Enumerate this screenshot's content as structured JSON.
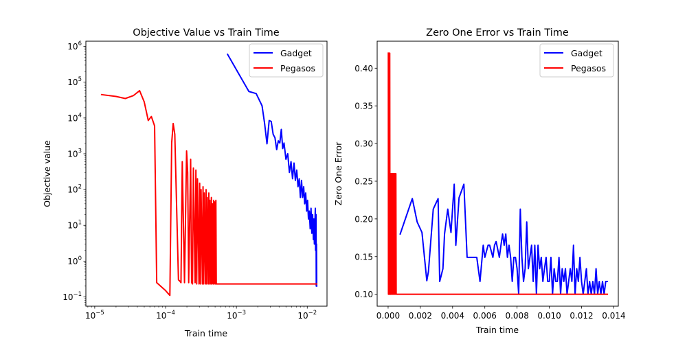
{
  "chart_data": [
    {
      "type": "line",
      "title": "Objective Value vs Train Time",
      "xlabel": "Train time",
      "ylabel": "Objective value",
      "xscale": "log",
      "yscale": "log",
      "xlim": [
        7.5e-06,
        0.019
      ],
      "ylim": [
        0.055,
        1400000
      ],
      "xticks": [
        {
          "base": "10",
          "exp": "−5"
        },
        {
          "base": "10",
          "exp": "−4"
        },
        {
          "base": "10",
          "exp": "−3"
        },
        {
          "base": "10",
          "exp": "−2"
        }
      ],
      "xtick_values": [
        1e-05,
        0.0001,
        0.001,
        0.01
      ],
      "yticks": [
        {
          "base": "10",
          "exp": "−1"
        },
        {
          "base": "10",
          "exp": "0"
        },
        {
          "base": "10",
          "exp": "1"
        },
        {
          "base": "10",
          "exp": "2"
        },
        {
          "base": "10",
          "exp": "3"
        },
        {
          "base": "10",
          "exp": "4"
        },
        {
          "base": "10",
          "exp": "5"
        },
        {
          "base": "10",
          "exp": "6"
        }
      ],
      "ytick_values": [
        0.1,
        1,
        10,
        100,
        1000,
        10000,
        100000,
        1000000
      ],
      "legend": {
        "position": "top-right",
        "entries": [
          "Gadget",
          "Pegasos"
        ]
      },
      "grid": false,
      "series": [
        {
          "name": "Gadget",
          "color": "#0000ff",
          "x": [
            0.00075,
            0.0015,
            0.0019,
            0.0023,
            0.0025,
            0.0027,
            0.0029,
            0.0031,
            0.0033,
            0.0035,
            0.0037,
            0.0039,
            0.0041,
            0.0043,
            0.0045,
            0.0047,
            0.005,
            0.0053,
            0.0056,
            0.0059,
            0.0062,
            0.0065,
            0.0068,
            0.0071,
            0.0074,
            0.0077,
            0.008,
            0.0083,
            0.0086,
            0.0089,
            0.0092,
            0.0095,
            0.0098,
            0.0101,
            0.0104,
            0.0107,
            0.011,
            0.0113,
            0.0116,
            0.0119,
            0.0122,
            0.0124,
            0.0126,
            0.0128,
            0.013,
            0.0131,
            0.0132,
            0.0133,
            0.0134,
            0.0135,
            0.0136
          ],
          "y": [
            600000,
            55000,
            48000,
            22000,
            7000,
            1900,
            8500,
            8000,
            3500,
            2800,
            1300,
            2300,
            2000,
            4800,
            1400,
            2000,
            700,
            1000,
            300,
            600,
            200,
            550,
            180,
            350,
            120,
            200,
            60,
            180,
            60,
            120,
            40,
            80,
            25,
            50,
            15,
            25,
            8,
            30,
            6,
            20,
            4,
            15,
            3,
            10,
            30,
            2,
            5,
            20,
            0.2,
            3,
            0.2
          ]
        },
        {
          "name": "Pegasos",
          "color": "#ff0000",
          "x": [
            1.25e-05,
            2e-05,
            2.7e-05,
            3.5e-05,
            4.3e-05,
            5e-05,
            5.7e-05,
            6.3e-05,
            7e-05,
            7.5e-05,
            8.5e-05,
            0.0001,
            0.000115,
            0.000122,
            0.000128,
            0.000135,
            0.000152,
            0.000158,
            0.000165,
            0.000172,
            0.000185,
            0.000198,
            0.000205,
            0.000212,
            0.000226,
            0.000233,
            0.00024,
            0.000247,
            0.000261,
            0.000268,
            0.000275,
            0.000282,
            0.000296,
            0.000303,
            0.00031,
            0.000317,
            0.000331,
            0.000338,
            0.000345,
            0.000352,
            0.000366,
            0.000373,
            0.00038,
            0.000387,
            0.000401,
            0.000408,
            0.000415,
            0.000422,
            0.000436,
            0.000443,
            0.00045,
            0.000457,
            0.000471,
            0.000478,
            0.000485,
            0.000492,
            0.000506,
            0.000513,
            0.00052,
            0.0006,
            0.0008,
            0.001,
            0.002,
            0.004,
            0.008,
            0.0136
          ],
          "y": [
            45000,
            40000,
            35000,
            42000,
            58000,
            28000,
            8500,
            11000,
            6000,
            0.25,
            0.2,
            0.15,
            0.11,
            2000,
            7000,
            3500,
            0.3,
            0.28,
            0.25,
            600,
            0.25,
            1200,
            300,
            0.25,
            700,
            0.25,
            0.23,
            400,
            0.25,
            350,
            0.23,
            200,
            0.23,
            150,
            0.23,
            100,
            0.23,
            120,
            0.23,
            80,
            0.23,
            100,
            0.23,
            60,
            0.23,
            80,
            0.23,
            50,
            0.23,
            60,
            0.23,
            40,
            0.23,
            50,
            0.23,
            45,
            0.23,
            50,
            0.23,
            0.23,
            0.23,
            0.23,
            0.23,
            0.23,
            0.23,
            0.23
          ]
        }
      ]
    },
    {
      "type": "line",
      "title": "Zero One Error vs Train Time",
      "xlabel": "Train time",
      "ylabel": "Zero One Error",
      "xlim": [
        -0.00068,
        0.01428
      ],
      "ylim": [
        0.0842,
        0.4358
      ],
      "xticks": [
        "0.000",
        "0.002",
        "0.004",
        "0.006",
        "0.008",
        "0.010",
        "0.012",
        "0.014"
      ],
      "xtick_values": [
        0,
        0.002,
        0.004,
        0.006,
        0.008,
        0.01,
        0.012,
        0.014
      ],
      "yticks": [
        "0.10",
        "0.15",
        "0.20",
        "0.25",
        "0.30",
        "0.35",
        "0.40"
      ],
      "ytick_values": [
        0.1,
        0.15,
        0.2,
        0.25,
        0.3,
        0.35,
        0.4
      ],
      "legend": {
        "position": "top-right",
        "entries": [
          "Gadget",
          "Pegasos"
        ]
      },
      "grid": false,
      "series": [
        {
          "name": "Gadget",
          "color": "#0000ff",
          "x": [
            0.00075,
            0.0015,
            0.0018,
            0.0021,
            0.0024,
            0.0025,
            0.0028,
            0.0031,
            0.0032,
            0.0034,
            0.0035,
            0.0037,
            0.0039,
            0.0041,
            0.0042,
            0.0044,
            0.0047,
            0.0049,
            0.0051,
            0.0055,
            0.0057,
            0.0059,
            0.006,
            0.0062,
            0.0063,
            0.0065,
            0.0066,
            0.0067,
            0.0069,
            0.007,
            0.0071,
            0.0072,
            0.0073,
            0.0074,
            0.0075,
            0.0076,
            0.0077,
            0.0078,
            0.0079,
            0.008,
            0.0081,
            0.0082,
            0.0083,
            0.0084,
            0.0085,
            0.0086,
            0.0087,
            0.0089,
            0.009,
            0.0091,
            0.0092,
            0.0093,
            0.0094,
            0.0095,
            0.0096,
            0.0097,
            0.0098,
            0.0099,
            0.01,
            0.0101,
            0.0102,
            0.0103,
            0.0104,
            0.0105,
            0.0106,
            0.0107,
            0.0108,
            0.0109,
            0.011,
            0.0111,
            0.0112,
            0.0113,
            0.0114,
            0.0115,
            0.0116,
            0.0117,
            0.0118,
            0.0119,
            0.012,
            0.0121,
            0.0122,
            0.0123,
            0.0124,
            0.0125,
            0.0126,
            0.0127,
            0.0128,
            0.0129,
            0.013,
            0.0131,
            0.0132,
            0.0133,
            0.0134,
            0.0135,
            0.0136
          ],
          "y": [
            0.18,
            0.227,
            0.196,
            0.182,
            0.118,
            0.13,
            0.213,
            0.227,
            0.117,
            0.134,
            0.18,
            0.213,
            0.182,
            0.246,
            0.165,
            0.228,
            0.246,
            0.149,
            0.149,
            0.149,
            0.117,
            0.165,
            0.149,
            0.165,
            0.165,
            0.149,
            0.165,
            0.17,
            0.149,
            0.165,
            0.18,
            0.165,
            0.18,
            0.149,
            0.165,
            0.149,
            0.117,
            0.149,
            0.149,
            0.134,
            0.1,
            0.213,
            0.149,
            0.117,
            0.134,
            0.196,
            0.134,
            0.165,
            0.117,
            0.165,
            0.1,
            0.165,
            0.134,
            0.149,
            0.117,
            0.134,
            0.149,
            0.117,
            0.117,
            0.149,
            0.1,
            0.134,
            0.117,
            0.117,
            0.149,
            0.1,
            0.134,
            0.117,
            0.134,
            0.1,
            0.117,
            0.134,
            0.117,
            0.165,
            0.1,
            0.134,
            0.117,
            0.149,
            0.117,
            0.1,
            0.117,
            0.134,
            0.1,
            0.117,
            0.1,
            0.117,
            0.1,
            0.134,
            0.1,
            0.117,
            0.1,
            0.117,
            0.1,
            0.117,
            0.117
          ]
        },
        {
          "name": "Pegasos",
          "color": "#ff0000",
          "x": [
            1.25e-05,
            2e-05,
            3.5e-05,
            5e-05,
            7e-05,
            8.5e-05,
            0.0001,
            0.000115,
            0.000125,
            0.000135,
            0.00015,
            0.000165,
            0.00018,
            0.0002,
            0.00022,
            0.00024,
            0.00026,
            0.00028,
            0.0003,
            0.00032,
            0.00034,
            0.00036,
            0.00038,
            0.0004,
            0.00042,
            0.00044,
            0.00046,
            0.00048,
            0.0005,
            0.00052,
            0.0006,
            0.002,
            0.006,
            0.01,
            0.0136
          ],
          "y": [
            0.42,
            0.1,
            0.42,
            0.1,
            0.42,
            0.1,
            0.42,
            0.1,
            0.1,
            0.26,
            0.1,
            0.26,
            0.1,
            0.26,
            0.1,
            0.26,
            0.1,
            0.26,
            0.1,
            0.26,
            0.1,
            0.26,
            0.1,
            0.26,
            0.1,
            0.26,
            0.1,
            0.26,
            0.1,
            0.1,
            0.1,
            0.1,
            0.1,
            0.1,
            0.1
          ]
        }
      ]
    }
  ]
}
